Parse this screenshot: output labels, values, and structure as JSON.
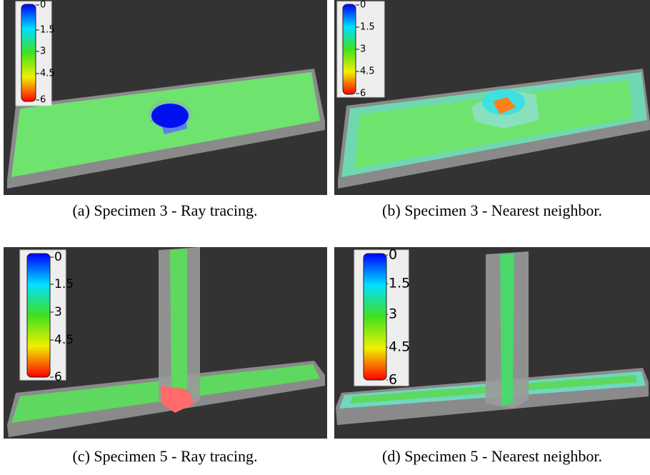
{
  "panels": [
    {
      "caption": "(a) Specimen 3 - Ray tracing.",
      "colorbar_ticks": [
        0,
        1.5,
        3,
        4.5,
        6
      ]
    },
    {
      "caption": "(b) Specimen 3 - Nearest neighbor.",
      "colorbar_ticks": [
        0,
        1.5,
        3,
        4.5,
        6
      ]
    },
    {
      "caption": "(c) Specimen 5 - Ray tracing.",
      "colorbar_ticks": [
        0,
        1.5,
        3,
        4.5,
        6
      ]
    },
    {
      "caption": "(d) Specimen 5 - Nearest neighbor.",
      "colorbar_ticks": [
        0,
        1.5,
        3,
        4.5,
        6
      ]
    }
  ]
}
